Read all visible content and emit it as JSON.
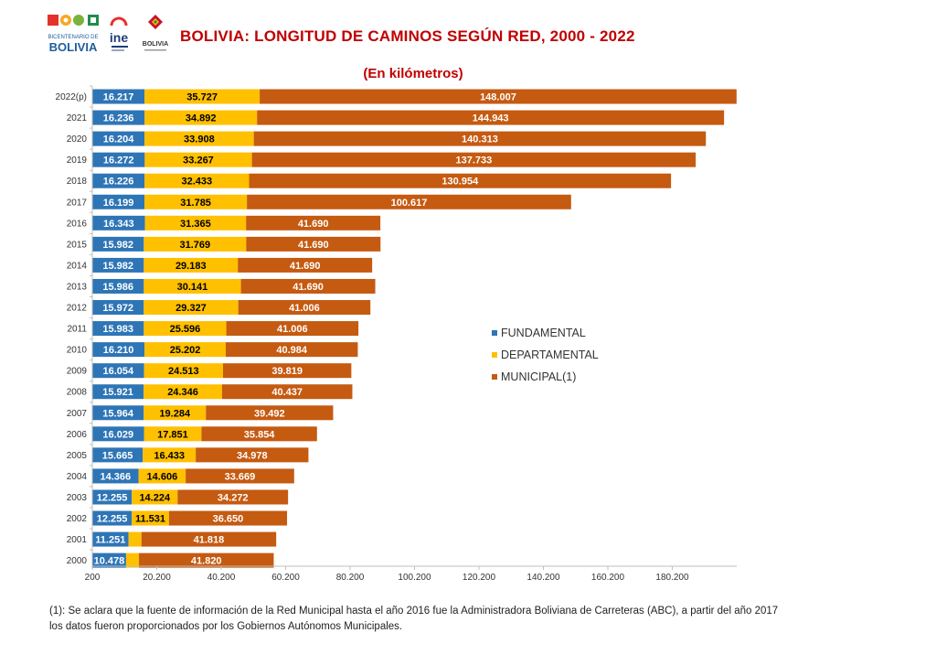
{
  "header": {
    "title": "BOLIVIA: LONGITUD DE CAMINOS SEGÚN RED, 2000 - 2022",
    "subtitle": "(En kilómetros)",
    "logo_bicentenario_small": "BICENTENARIO DE",
    "logo_bicentenario_big": "BOLIVIA",
    "logo_ine": "ine",
    "logo_estado": "BOLIVIA"
  },
  "colors": {
    "fundamental": "#2e75b6",
    "departamental": "#ffc000",
    "municipal": "#c55a11",
    "title": "#c00000"
  },
  "legend": [
    {
      "label": "FUNDAMENTAL",
      "color": "#2e75b6"
    },
    {
      "label": "DEPARTAMENTAL",
      "color": "#ffc000"
    },
    {
      "label": "MUNICIPAL(1)",
      "color": "#c55a11"
    }
  ],
  "chart_data": {
    "type": "bar",
    "orientation": "horizontal",
    "stacked": true,
    "categories": [
      "2022(p)",
      "2021",
      "2020",
      "2019",
      "2018",
      "2017",
      "2016",
      "2015",
      "2014",
      "2013",
      "2012",
      "2011",
      "2010",
      "2009",
      "2008",
      "2007",
      "2006",
      "2005",
      "2004",
      "2003",
      "2002",
      "2001",
      "2000"
    ],
    "series": [
      {
        "name": "FUNDAMENTAL",
        "values": [
          16217,
          16236,
          16204,
          16272,
          16226,
          16199,
          16343,
          15982,
          15982,
          15986,
          15972,
          15983,
          16210,
          16054,
          15921,
          15964,
          16029,
          15665,
          14366,
          12255,
          12255,
          11251,
          10478
        ],
        "labels": [
          "16.217",
          "16.236",
          "16.204",
          "16.272",
          "16.226",
          "16.199",
          "16.343",
          "15.982",
          "15.982",
          "15.986",
          "15.972",
          "15.983",
          "16.210",
          "16.054",
          "15.921",
          "15.964",
          "16.029",
          "15.665",
          "14.366",
          "12.255",
          "12.255",
          "11.251",
          "10.478"
        ]
      },
      {
        "name": "DEPARTAMENTAL",
        "values": [
          35727,
          34892,
          33908,
          33267,
          32433,
          31785,
          31365,
          31769,
          29183,
          30141,
          29327,
          25596,
          25202,
          24513,
          24346,
          19284,
          17851,
          16433,
          14606,
          14224,
          11531,
          4000,
          4000
        ],
        "labels": [
          "35.727",
          "34.892",
          "33.908",
          "33.267",
          "32.433",
          "31.785",
          "31.365",
          "31.769",
          "29.183",
          "30.141",
          "29.327",
          "25.596",
          "25.202",
          "24.513",
          "24.346",
          "19.284",
          "17.851",
          "16.433",
          "14.606",
          "14.224",
          "11.531",
          "",
          ""
        ]
      },
      {
        "name": "MUNICIPAL(1)",
        "values": [
          148007,
          144943,
          140313,
          137733,
          130954,
          100617,
          41690,
          41690,
          41690,
          41690,
          41006,
          41006,
          40984,
          39819,
          40437,
          39492,
          35854,
          34978,
          33669,
          34272,
          36650,
          41818,
          41820
        ],
        "labels": [
          "148.007",
          "144.943",
          "140.313",
          "137.733",
          "130.954",
          "100.617",
          "41.690",
          "41.690",
          "41.690",
          "41.690",
          "41.006",
          "41.006",
          "40.984",
          "39.819",
          "40.437",
          "39.492",
          "35.854",
          "34.978",
          "33.669",
          "34.272",
          "36.650",
          "41.818",
          "41.820"
        ]
      }
    ],
    "xlim": [
      200,
      200200
    ],
    "xticks": [
      200,
      20200,
      40200,
      60200,
      80200,
      100200,
      120200,
      140200,
      160200,
      180200
    ],
    "xtick_labels": [
      "200",
      "20.200",
      "40.200",
      "60.200",
      "80.200",
      "100.200",
      "120.200",
      "140.200",
      "160.200",
      "180.200"
    ],
    "legend_position": "right-middle",
    "grid": false
  },
  "footnote": {
    "text": "(1): Se aclara que la fuente de información de la Red Municipal hasta el año 2016 fue la Administradora  Boliviana de Carreteras (ABC), a partir del año 2017 los datos fueron  proporcionados por los Gobiernos Autónomos Municipales."
  }
}
